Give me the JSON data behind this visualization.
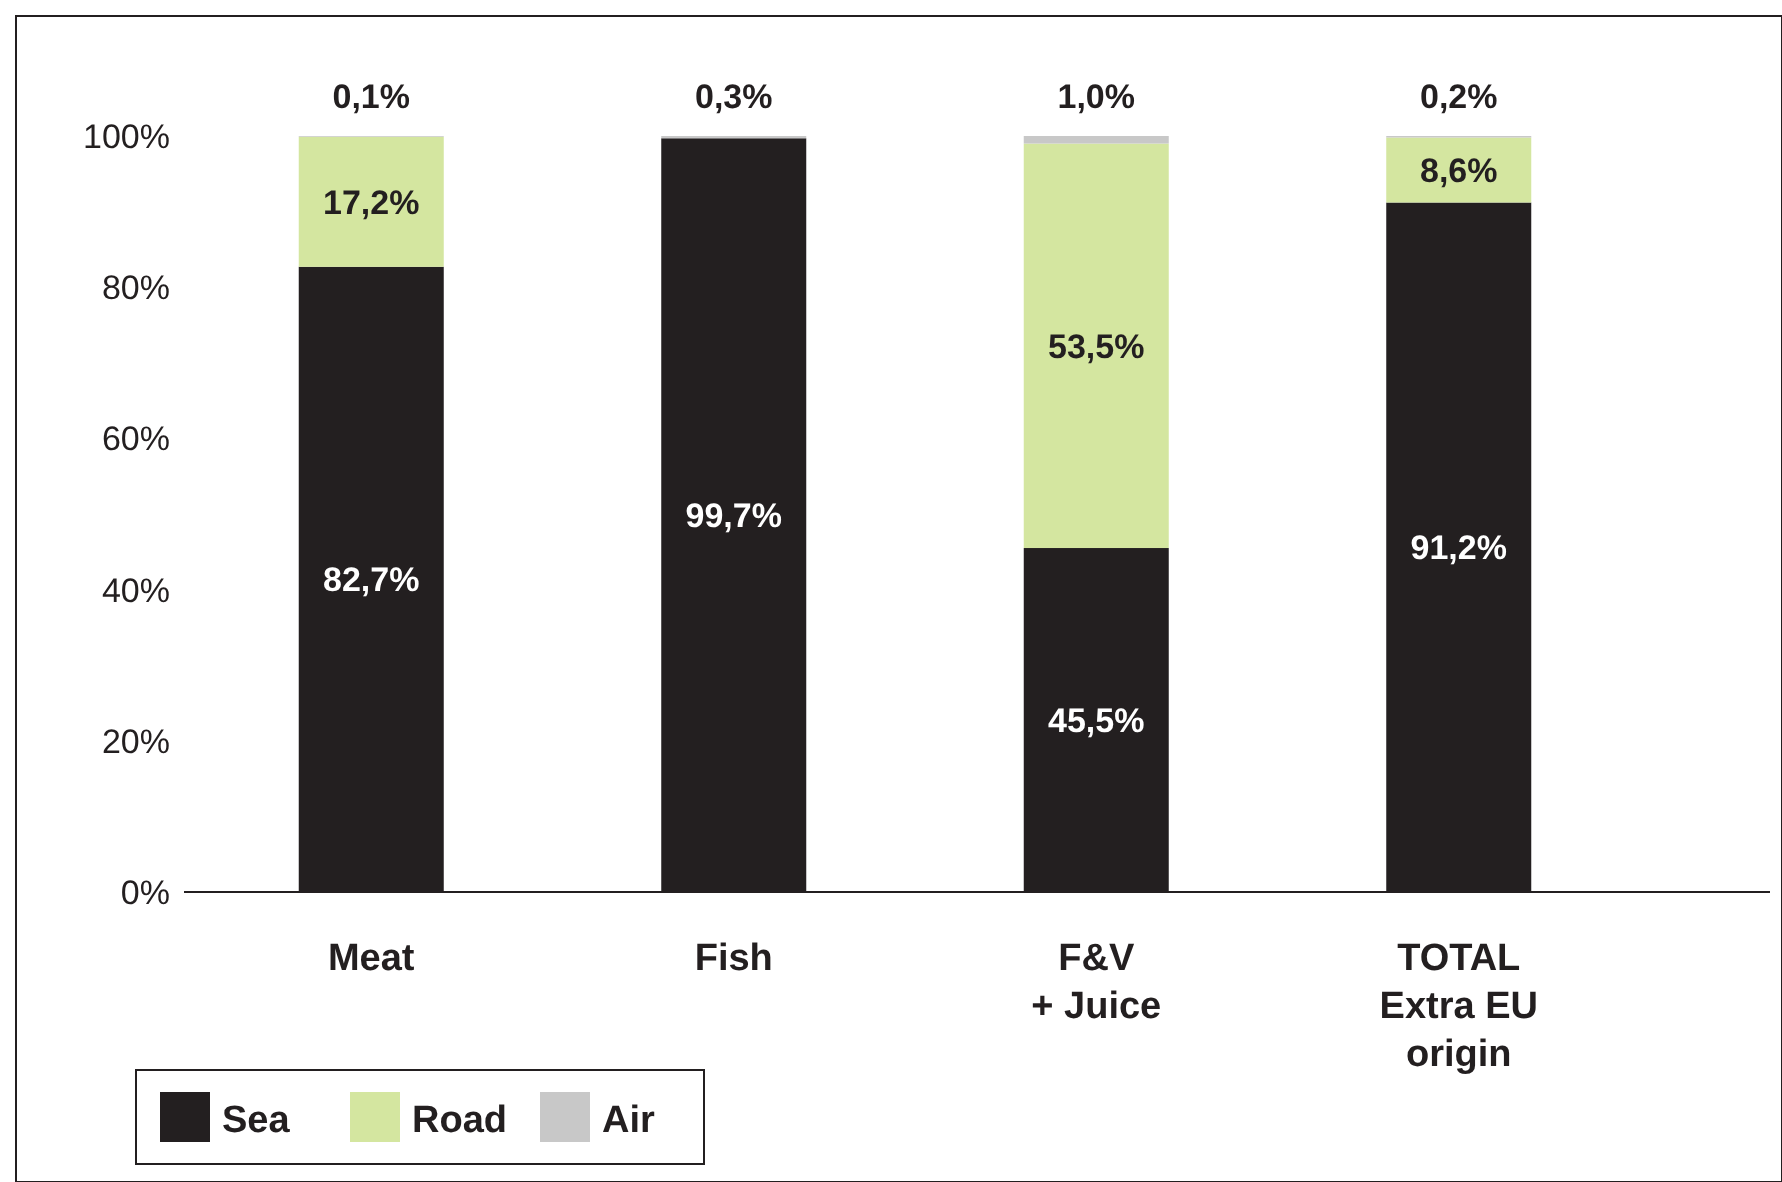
{
  "chart_data": {
    "type": "bar",
    "stacked": true,
    "categories": [
      "Meat",
      "Fish",
      "F&V\n+ Juice",
      "TOTAL\nExtra EU\norigin"
    ],
    "series": [
      {
        "name": "Sea",
        "color": "#231f20",
        "values": [
          82.7,
          99.7,
          45.5,
          91.2
        ],
        "value_labels": [
          "82,7%",
          "99,7%",
          "45,5%",
          "91,2%"
        ]
      },
      {
        "name": "Road",
        "color": "#d4e6a0",
        "values": [
          17.2,
          0,
          53.5,
          8.6
        ],
        "value_labels": [
          "17,2%",
          null,
          "53,5%",
          "8,6%"
        ]
      },
      {
        "name": "Air",
        "color": "#c8c8c8",
        "values": [
          0.1,
          0.3,
          1.0,
          0.2
        ],
        "value_labels": [
          "0,1%",
          "0,3%",
          "1,0%",
          "0,2%"
        ]
      }
    ],
    "ylim": [
      0,
      100
    ],
    "yticks": [
      {
        "value": 0,
        "label": "0%"
      },
      {
        "value": 20,
        "label": "20%"
      },
      {
        "value": 40,
        "label": "40%"
      },
      {
        "value": 60,
        "label": "60%"
      },
      {
        "value": 80,
        "label": "80%"
      },
      {
        "value": 100,
        "label": "100%"
      }
    ],
    "grid": false,
    "legend": "bottom left"
  }
}
